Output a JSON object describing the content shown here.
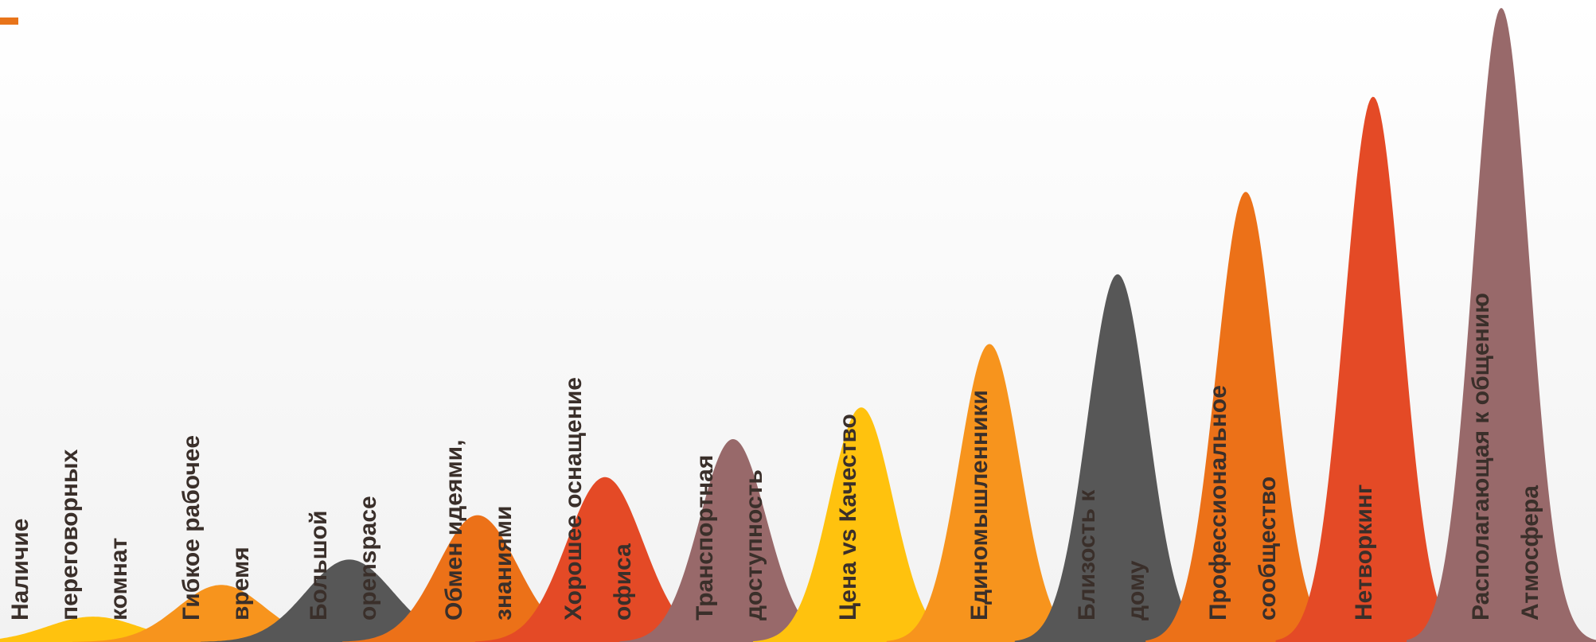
{
  "accent_color": "#e8741a",
  "chart_data": {
    "type": "area",
    "title": "",
    "xlabel": "",
    "ylabel": "",
    "ylim": [
      0,
      100
    ],
    "grid": false,
    "legend": "none",
    "categories": [
      "Наличие переговорных комнат",
      "Гибкое рабочее время",
      "Большой openspace",
      "Обмен идеями, знаниями",
      "Хорошее оснащение офиса",
      "Транспортная доступность",
      "Цена vs Качество",
      "Единомышленники",
      "Близость к дому",
      "Профессиональное сообщество",
      "Нетворкинг",
      "Располагающая к общению Атмосфера"
    ],
    "values": [
      4,
      9,
      13,
      20,
      26,
      32,
      37,
      47,
      58,
      71,
      86,
      100
    ],
    "label_lines": [
      [
        "Наличие",
        "переговорных",
        "комнат"
      ],
      [
        "Гибкое рабочее",
        "время"
      ],
      [
        "Большой",
        "openspace"
      ],
      [
        "Обмен идеями,",
        "знаниями"
      ],
      [
        "Хорошее оснащение",
        "офиса"
      ],
      [
        "Транспортная",
        "доступность"
      ],
      [
        "Цена vs Качество"
      ],
      [
        "Единомышленники"
      ],
      [
        "Близость к",
        "дому"
      ],
      [
        "Профессиональное",
        "сообщество"
      ],
      [
        "Нетворкинг"
      ],
      [
        "Располагающая к общению",
        "Атмосфера"
      ]
    ],
    "colors": [
      "#ffc20e",
      "#f7941d",
      "#575757",
      "#ec7118",
      "#e44a26",
      "#98696a",
      "#ffc20e",
      "#f7941d",
      "#575757",
      "#ec7118",
      "#e44a26",
      "#98696a"
    ]
  }
}
